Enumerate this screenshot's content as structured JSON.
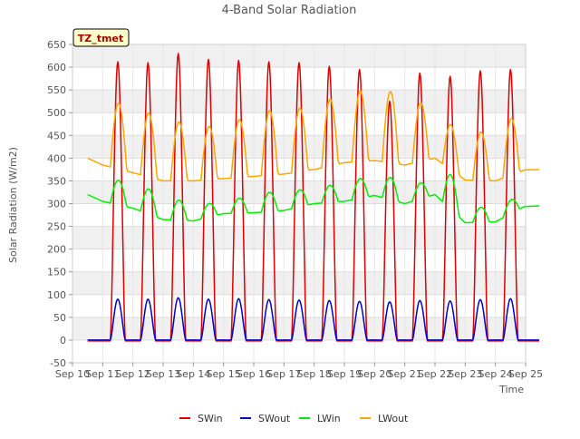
{
  "chart_data": {
    "type": "line",
    "title": "4-Band Solar Radiation",
    "xlabel": "Time",
    "ylabel": "Solar Radiation (W/m2)",
    "site_label": "TZ_tmet",
    "ylim": [
      -50,
      650
    ],
    "yticks": [
      -50,
      0,
      50,
      100,
      150,
      200,
      250,
      300,
      350,
      400,
      450,
      500,
      550,
      600,
      650
    ],
    "xlim": [
      "2022-09-10",
      "2022-09-25"
    ],
    "xtick_labels": [
      "Sep 10",
      "Sep 11",
      "Sep 12",
      "Sep 13",
      "Sep 14",
      "Sep 15",
      "Sep 16",
      "Sep 17",
      "Sep 18",
      "Sep 19",
      "Sep 20",
      "Sep 21",
      "Sep 22",
      "Sep 23",
      "Sep 24",
      "Sep 25"
    ],
    "grid": true,
    "legend_position": "bottom",
    "series": [
      {
        "name": "SWin",
        "color": "#dd0000",
        "start": "2022-09-10T12:00",
        "sampling": "daily (min/max envelope)",
        "night_min": [
          -2,
          -2,
          -2,
          -2,
          -2,
          -2,
          -2,
          -2,
          -2,
          -2,
          -2,
          -2,
          -2,
          -2,
          -2
        ],
        "daily_peak": [
          612,
          610,
          630,
          617,
          615,
          612,
          610,
          602,
          595,
          525,
          587,
          580,
          592,
          595
        ]
      },
      {
        "name": "SWout",
        "color": "#0000cc",
        "start": "2022-09-10T12:00",
        "sampling": "daily (min/max envelope)",
        "night_min": [
          0,
          0,
          0,
          0,
          0,
          0,
          0,
          0,
          0,
          0,
          0,
          0,
          0,
          0,
          0
        ],
        "daily_peak": [
          90,
          90,
          93,
          90,
          91,
          89,
          88,
          87,
          85,
          84,
          87,
          86,
          89,
          91
        ]
      },
      {
        "name": "LWin",
        "color": "#00ee00",
        "start": "2022-09-10T12:00",
        "sampling": "daily (min/max envelope)",
        "night_min": [
          305,
          290,
          265,
          262,
          278,
          280,
          285,
          300,
          305,
          318,
          300,
          320,
          258,
          260,
          295
        ],
        "daily_peak": [
          352,
          333,
          308,
          300,
          312,
          325,
          330,
          340,
          355,
          358,
          345,
          365,
          292,
          308
        ]
      },
      {
        "name": "LWout",
        "color": "#ffa500",
        "start": "2022-09-10T12:00",
        "sampling": "daily (min/max envelope)",
        "night_min": [
          385,
          368,
          350,
          350,
          355,
          360,
          365,
          375,
          390,
          395,
          385,
          400,
          352,
          350,
          375
        ],
        "daily_peak": [
          522,
          500,
          480,
          470,
          485,
          505,
          510,
          530,
          548,
          547,
          522,
          475,
          458,
          487
        ]
      }
    ]
  }
}
